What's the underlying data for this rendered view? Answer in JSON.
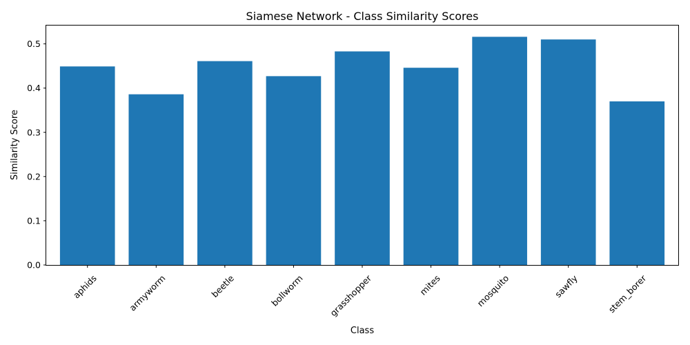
{
  "chart_data": {
    "type": "bar",
    "title": "Siamese Network - Class Similarity Scores",
    "xlabel": "Class",
    "ylabel": "Similarity Score",
    "categories": [
      "aphids",
      "armyworm",
      "beetle",
      "bollworm",
      "grasshopper",
      "mites",
      "mosquito",
      "sawfly",
      "stem_borer"
    ],
    "values": [
      0.449,
      0.386,
      0.461,
      0.427,
      0.483,
      0.446,
      0.516,
      0.51,
      0.37
    ],
    "ylim": [
      0,
      0.5415
    ],
    "yticks": [
      "0.0",
      "0.1",
      "0.2",
      "0.3",
      "0.4",
      "0.5"
    ],
    "grid": false,
    "bar_color": "#1f77b4"
  }
}
